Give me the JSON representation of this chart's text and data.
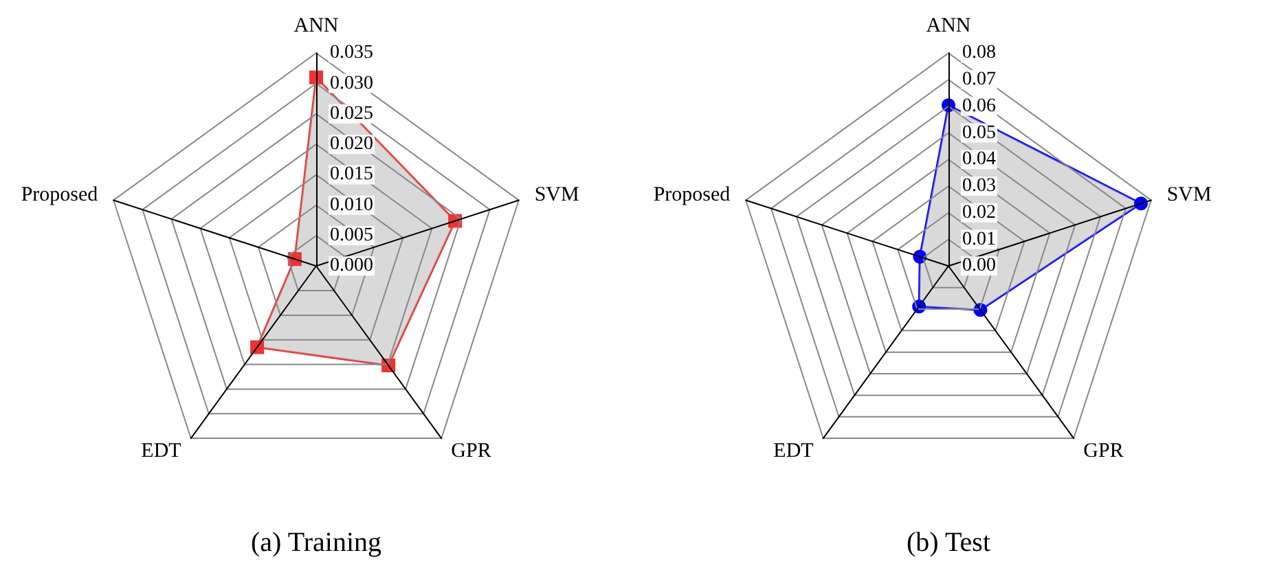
{
  "chart_data": [
    {
      "type": "radar",
      "title": "(a) Training",
      "categories": [
        "ANN",
        "SVM",
        "GPR",
        "EDT",
        "Proposed"
      ],
      "marker": "square",
      "ylim": [
        0,
        0.035
      ],
      "yticks": [
        {
          "value": 0,
          "label": "0.000"
        },
        0.005,
        {
          "value": 0.01,
          "label": "0.010"
        },
        0.015,
        {
          "value": 0.02,
          "label": "0.020"
        },
        0.025,
        {
          "value": 0.03,
          "label": "0.030"
        },
        0.035
      ],
      "series": [
        {
          "color": "#ee3333",
          "values": [
            0.031,
            0.024,
            0.0202,
            0.0165,
            0.0037
          ]
        }
      ]
    },
    {
      "type": "radar",
      "title": "(b) Test",
      "categories": [
        "ANN",
        "SVM",
        "GPR",
        "EDT",
        "Proposed"
      ],
      "marker": "circle",
      "ylim": [
        0,
        0.08
      ],
      "yticks": [
        {
          "value": 0,
          "label": "0.00"
        },
        0.01,
        0.02,
        0.03,
        0.04,
        0.05,
        0.06,
        0.07,
        0.08
      ],
      "series": [
        {
          "color": "#0000ff",
          "values": [
            0.0604,
            0.076,
            0.0204,
            0.0188,
            0.0113
          ]
        }
      ]
    }
  ]
}
